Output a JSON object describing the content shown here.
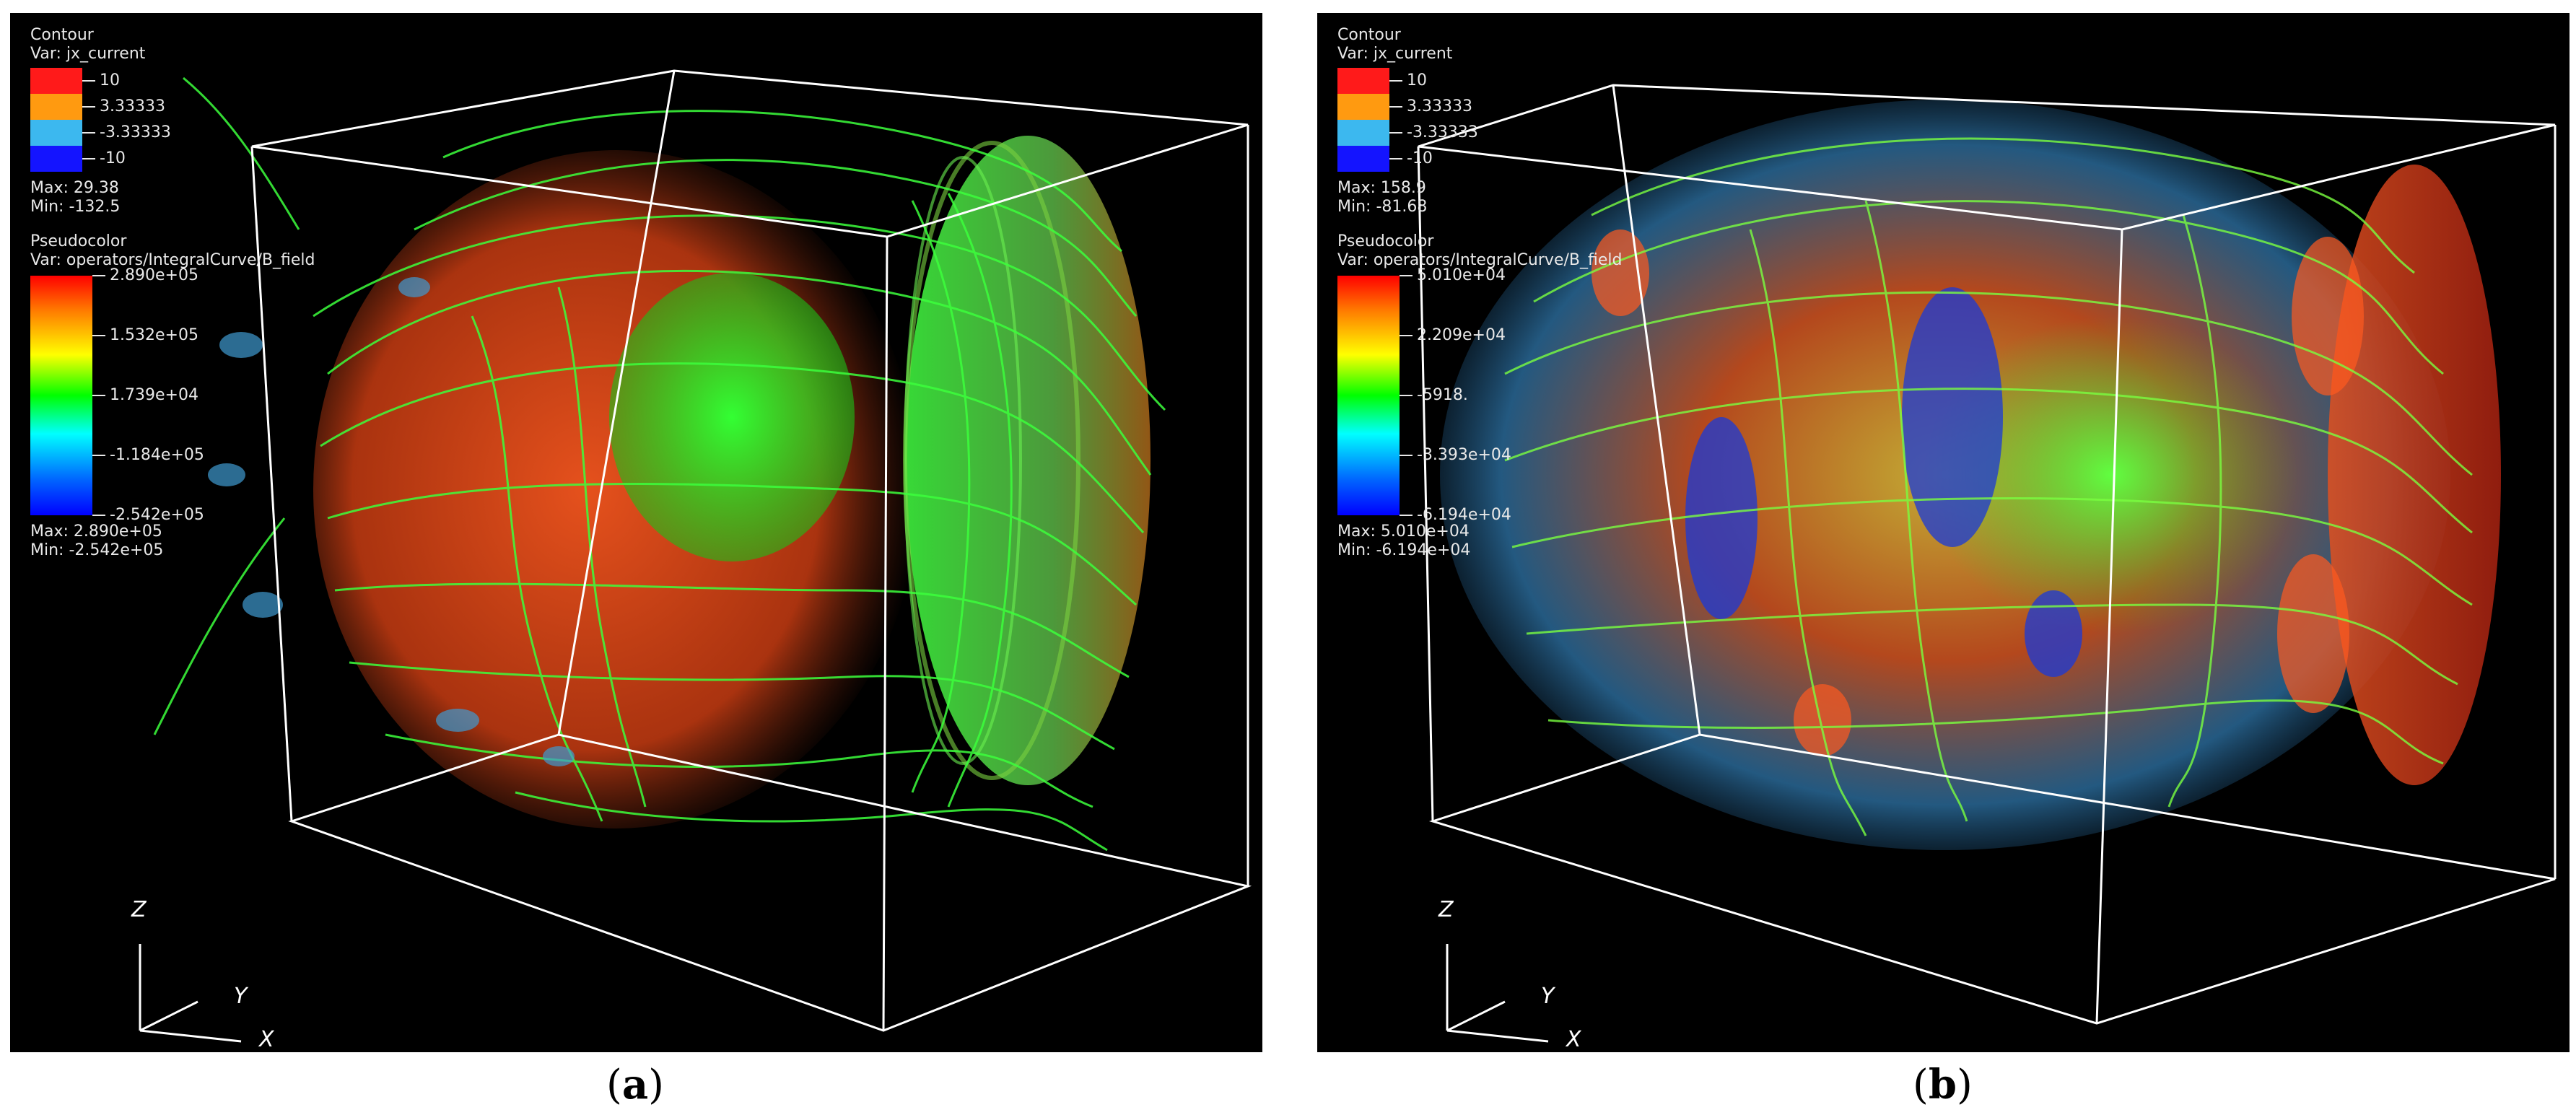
{
  "panels": [
    {
      "id": "a",
      "caption_letter": "a",
      "contour": {
        "title": "Contour",
        "var": "Var: jx_current",
        "levels": [
          "10",
          "3.33333",
          "-3.33333",
          "-10"
        ],
        "level_colors": [
          "#ff1a1a",
          "#ff9a10",
          "#3cb8ef",
          "#1414ff"
        ],
        "max": "Max: 29.38",
        "min": "Min: -132.5"
      },
      "pseudocolor": {
        "title": "Pseudocolor",
        "var": "Var: operators/IntegralCurve/B_field",
        "ticks": [
          "2.890e+05",
          "1.532e+05",
          "1.739e+04",
          "-1.184e+05",
          "-2.542e+05"
        ],
        "max": "Max: 2.890e+05",
        "min": "Min: -2.542e+05"
      },
      "axes": {
        "z": "Z",
        "y": "Y",
        "x": "X"
      }
    },
    {
      "id": "b",
      "caption_letter": "b",
      "contour": {
        "title": "Contour",
        "var": "Var: jx_current",
        "levels": [
          "10",
          "3.33333",
          "-3.33333",
          "-10"
        ],
        "level_colors": [
          "#ff1a1a",
          "#ff9a10",
          "#3cb8ef",
          "#1414ff"
        ],
        "max": "Max: 158.9",
        "min": "Min: -81.68"
      },
      "pseudocolor": {
        "title": "Pseudocolor",
        "var": "Var: operators/IntegralCurve/B_field",
        "ticks": [
          "5.010e+04",
          "2.209e+04",
          "-5918.",
          "-3.393e+04",
          "-6.194e+04"
        ],
        "max": "Max: 5.010e+04",
        "min": "Min: -6.194e+04"
      },
      "axes": {
        "z": "Z",
        "y": "Y",
        "x": "X"
      }
    }
  ]
}
